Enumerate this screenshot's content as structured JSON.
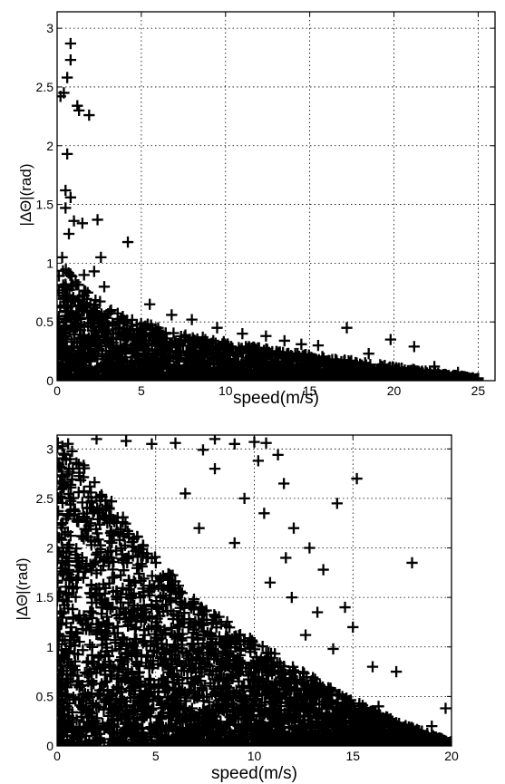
{
  "chart_data": [
    {
      "type": "scatter",
      "marker": "+",
      "color": "#000000",
      "xlabel": "speed(m/s)",
      "ylabel": "|ΔΘ|(rad)",
      "xlim": [
        0,
        26
      ],
      "ylim": [
        0,
        3.14
      ],
      "xticks": [
        "0",
        "5",
        "10",
        "15",
        "20",
        "25"
      ],
      "yticks": [
        "0",
        "0.5",
        "1",
        "1.5",
        "2",
        "2.5",
        "3"
      ],
      "grid": true,
      "series": [
        {
          "points": [
            [
              0.2,
              2.42
            ],
            [
              0.4,
              2.45
            ],
            [
              0.6,
              1.93
            ],
            [
              0.5,
              1.62
            ],
            [
              0.6,
              2.58
            ],
            [
              0.8,
              2.73
            ],
            [
              0.8,
              2.87
            ],
            [
              1.2,
              2.34
            ],
            [
              1.3,
              2.3
            ],
            [
              1.9,
              2.26
            ],
            [
              0.8,
              1.56
            ],
            [
              0.5,
              1.47
            ],
            [
              0.7,
              1.25
            ],
            [
              1.0,
              1.36
            ],
            [
              1.5,
              1.34
            ],
            [
              2.4,
              1.37
            ],
            [
              0.3,
              1.05
            ],
            [
              2.6,
              1.05
            ],
            [
              4.2,
              1.18
            ],
            [
              2.2,
              0.93
            ],
            [
              1.6,
              0.9
            ],
            [
              2.8,
              0.8
            ],
            [
              5.5,
              0.65
            ],
            [
              6.8,
              0.56
            ],
            [
              8.0,
              0.52
            ],
            [
              9.5,
              0.45
            ],
            [
              11.0,
              0.4
            ],
            [
              12.4,
              0.38
            ],
            [
              13.5,
              0.34
            ],
            [
              14.5,
              0.31
            ],
            [
              15.5,
              0.3
            ],
            [
              17.2,
              0.45
            ],
            [
              18.5,
              0.23
            ],
            [
              19.8,
              0.35
            ],
            [
              21.2,
              0.29
            ],
            [
              22.4,
              0.12
            ],
            [
              23.8,
              0.07
            ],
            [
              25.0,
              0.02
            ]
          ],
          "envelope": [
            [
              0,
              1.0
            ],
            [
              0.5,
              0.95
            ],
            [
              1,
              0.9
            ],
            [
              2,
              0.75
            ],
            [
              3,
              0.62
            ],
            [
              4,
              0.55
            ],
            [
              5,
              0.5
            ],
            [
              6,
              0.46
            ],
            [
              7,
              0.42
            ],
            [
              8,
              0.39
            ],
            [
              9,
              0.36
            ],
            [
              10,
              0.33
            ],
            [
              11,
              0.3
            ],
            [
              12,
              0.28
            ],
            [
              13,
              0.26
            ],
            [
              14,
              0.24
            ],
            [
              15,
              0.22
            ],
            [
              16,
              0.2
            ],
            [
              17,
              0.18
            ],
            [
              18,
              0.16
            ],
            [
              19,
              0.14
            ],
            [
              20,
              0.12
            ],
            [
              21,
              0.1
            ],
            [
              22,
              0.08
            ],
            [
              23,
              0.06
            ],
            [
              24,
              0.04
            ],
            [
              25,
              0.02
            ]
          ]
        }
      ]
    },
    {
      "type": "scatter",
      "marker": "+",
      "color": "#000000",
      "xlabel": "speed(m/s)",
      "ylabel": "|ΔΘ|(rad)",
      "xlim": [
        0,
        20
      ],
      "ylim": [
        0,
        3.14
      ],
      "xticks": [
        "0",
        "5",
        "10",
        "15",
        "20"
      ],
      "yticks": [
        "0",
        "0.5",
        "1",
        "1.5",
        "2",
        "2.5",
        "3"
      ],
      "grid": true,
      "series": [
        {
          "points": [
            [
              2.0,
              3.1
            ],
            [
              3.5,
              3.08
            ],
            [
              4.8,
              3.05
            ],
            [
              6.0,
              3.06
            ],
            [
              7.4,
              2.99
            ],
            [
              8.0,
              3.1
            ],
            [
              9.0,
              3.05
            ],
            [
              10.0,
              3.07
            ],
            [
              10.6,
              3.06
            ],
            [
              11.2,
              2.94
            ],
            [
              10.2,
              2.88
            ],
            [
              11.5,
              2.65
            ],
            [
              15.2,
              2.7
            ],
            [
              18.0,
              1.85
            ],
            [
              14.2,
              2.45
            ],
            [
              12.8,
              2.0
            ],
            [
              13.5,
              1.78
            ],
            [
              11.6,
              1.9
            ],
            [
              14.6,
              1.4
            ],
            [
              15.0,
              1.2
            ],
            [
              13.2,
              1.35
            ],
            [
              12.6,
              1.12
            ],
            [
              14.0,
              0.98
            ],
            [
              16.0,
              0.8
            ],
            [
              17.2,
              0.75
            ],
            [
              19.7,
              0.38
            ],
            [
              19.0,
              0.2
            ],
            [
              18.5,
              0.15
            ],
            [
              17.0,
              0.25
            ],
            [
              16.3,
              0.4
            ],
            [
              8.0,
              2.8
            ],
            [
              6.5,
              2.55
            ],
            [
              9.5,
              2.5
            ],
            [
              10.5,
              2.35
            ],
            [
              12.0,
              2.2
            ],
            [
              9.0,
              2.05
            ],
            [
              7.2,
              2.2
            ],
            [
              10.8,
              1.65
            ],
            [
              11.9,
              1.5
            ],
            [
              13.0,
              0.6
            ]
          ],
          "envelope": [
            [
              0,
              3.14
            ],
            [
              1,
              3.0
            ],
            [
              2,
              2.7
            ],
            [
              3,
              2.4
            ],
            [
              4,
              2.15
            ],
            [
              5,
              1.9
            ],
            [
              6,
              1.7
            ],
            [
              7,
              1.5
            ],
            [
              8,
              1.35
            ],
            [
              9,
              1.2
            ],
            [
              10,
              1.07
            ],
            [
              11,
              0.94
            ],
            [
              12,
              0.82
            ],
            [
              13,
              0.7
            ],
            [
              14,
              0.58
            ],
            [
              15,
              0.47
            ],
            [
              16,
              0.36
            ],
            [
              17,
              0.27
            ],
            [
              18,
              0.19
            ],
            [
              19,
              0.11
            ],
            [
              20,
              0.04
            ]
          ]
        }
      ]
    }
  ]
}
